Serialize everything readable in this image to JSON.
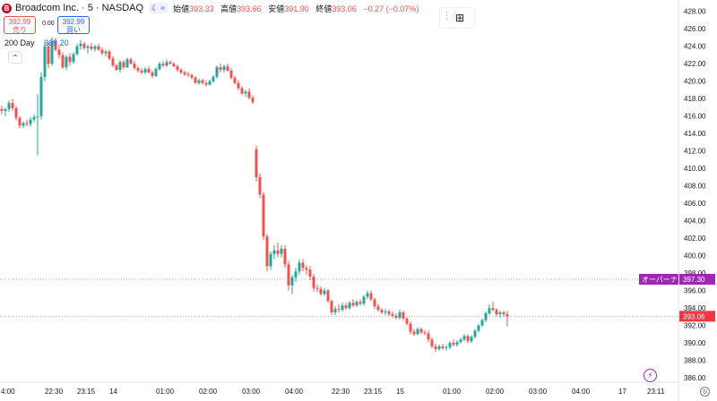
{
  "legend": {
    "logo_letter": "B",
    "symbol": "Broadcom Inc. · 5 · NASDAQ",
    "moon": "☾",
    "wave": "≈",
    "open_label": "始値",
    "open": "393.33",
    "high_label": "高値",
    "high": "393.66",
    "low_label": "安値",
    "low": "391.90",
    "close_label": "終値",
    "close": "393.06",
    "change": "−0.27 (−0.07%)"
  },
  "trade": {
    "sell_price": "392.99",
    "sell_label": "売り",
    "spread": "0.00",
    "buy_price": "392.99",
    "buy_label": "買い"
  },
  "indicator": {
    "name": "200 Day",
    "value": "369.20"
  },
  "collapse_icon": "⌃",
  "tools_icon": "⊞",
  "flash_icon": "⚡",
  "settings_icon": "⚙",
  "colors": {
    "up": "#26a69a",
    "down": "#ef5350",
    "ma": "#2962ff",
    "ah": "#9c27b0",
    "last": "#f23645"
  },
  "chart_data": {
    "type": "candlestick",
    "y_ticks": [
      386,
      388,
      390,
      392,
      394,
      396,
      398,
      400,
      402,
      404,
      406,
      408,
      410,
      412,
      414,
      416,
      418,
      420,
      422,
      424,
      426,
      428
    ],
    "y_tick_labels": [
      "386.00",
      "388.00",
      "390.00",
      "392.00",
      "394.00",
      "396.00",
      "398.00",
      "400.00",
      "402.00",
      "404.00",
      "406.00",
      "408.00",
      "410.00",
      "412.00",
      "414.00",
      "416.00",
      "418.00",
      "420.00",
      "422.00",
      "424.00",
      "426.00",
      "428.00"
    ],
    "ylim": [
      385.5,
      429
    ],
    "x_labels": [
      {
        "text": "4:00",
        "i": 0
      },
      {
        "text": "22:30",
        "i": 14
      },
      {
        "text": "23:15",
        "i": 23
      },
      {
        "text": "14",
        "i": 32
      },
      {
        "text": "01:00",
        "i": 45
      },
      {
        "text": "02:00",
        "i": 57
      },
      {
        "text": "03:00",
        "i": 69
      },
      {
        "text": "04:00",
        "i": 81
      },
      {
        "text": "22:30",
        "i": 94
      },
      {
        "text": "23:15",
        "i": 103
      },
      {
        "text": "15",
        "i": 112
      },
      {
        "text": "01:00",
        "i": 125
      },
      {
        "text": "02:00",
        "i": 137
      },
      {
        "text": "03:00",
        "i": 149
      },
      {
        "text": "04:00",
        "i": 161
      },
      {
        "text": "17",
        "i": 174
      },
      {
        "text": "23:11",
        "i": 182
      }
    ],
    "after_hours": {
      "label": "オーバーナイト",
      "value": 397.3,
      "value_text": "397.30"
    },
    "last_price": {
      "value": 393.06,
      "value_text": "393.06"
    },
    "ma200": 369.2,
    "candles": [
      [
        416.8,
        417.2,
        416.2,
        416.6
      ],
      [
        416.6,
        417.0,
        416.0,
        416.8
      ],
      [
        416.8,
        417.8,
        416.5,
        417.5
      ],
      [
        417.5,
        418.0,
        416.6,
        416.9
      ],
      [
        416.9,
        417.2,
        415.5,
        415.8
      ],
      [
        415.8,
        416.0,
        414.6,
        414.9
      ],
      [
        414.9,
        415.4,
        414.6,
        415.2
      ],
      [
        415.2,
        415.6,
        414.8,
        415.1
      ],
      [
        415.1,
        415.9,
        414.8,
        415.6
      ],
      [
        415.6,
        416.2,
        415.3,
        415.9
      ],
      [
        415.9,
        418.5,
        411.5,
        416.0
      ],
      [
        416.0,
        421.0,
        415.6,
        420.5
      ],
      [
        420.5,
        424.5,
        420.0,
        424.0
      ],
      [
        424.0,
        424.4,
        421.5,
        422.0
      ],
      [
        422.0,
        425.0,
        421.8,
        424.6
      ],
      [
        424.6,
        424.9,
        423.4,
        423.6
      ],
      [
        423.6,
        424.0,
        422.6,
        423.0
      ],
      [
        423.0,
        423.3,
        421.4,
        421.6
      ],
      [
        421.6,
        423.0,
        421.3,
        422.8
      ],
      [
        422.8,
        423.2,
        421.8,
        422.2
      ],
      [
        422.2,
        423.3,
        422.0,
        423.1
      ],
      [
        423.1,
        424.3,
        422.9,
        424.0
      ],
      [
        424.0,
        424.7,
        423.6,
        424.3
      ],
      [
        424.3,
        424.5,
        423.6,
        423.8
      ],
      [
        423.8,
        424.2,
        423.2,
        424.0
      ],
      [
        424.0,
        424.4,
        423.5,
        423.7
      ],
      [
        423.7,
        424.2,
        423.4,
        424.0
      ],
      [
        424.0,
        424.3,
        423.5,
        423.6
      ],
      [
        423.6,
        423.9,
        423.0,
        423.2
      ],
      [
        423.2,
        423.6,
        422.8,
        423.4
      ],
      [
        423.4,
        423.6,
        422.4,
        422.6
      ],
      [
        422.6,
        422.9,
        421.6,
        421.8
      ],
      [
        421.8,
        422.0,
        421.2,
        421.3
      ],
      [
        421.3,
        422.4,
        421.0,
        422.2
      ],
      [
        422.2,
        422.4,
        421.4,
        421.6
      ],
      [
        421.6,
        422.7,
        421.5,
        422.5
      ],
      [
        422.5,
        422.7,
        421.9,
        422.0
      ],
      [
        422.0,
        422.3,
        421.3,
        421.5
      ],
      [
        421.5,
        421.7,
        421.0,
        421.2
      ],
      [
        421.2,
        421.5,
        420.8,
        421.0
      ],
      [
        421.0,
        421.6,
        420.8,
        421.4
      ],
      [
        421.4,
        421.7,
        420.9,
        421.0
      ],
      [
        421.0,
        421.2,
        420.4,
        420.6
      ],
      [
        420.6,
        421.6,
        420.5,
        421.4
      ],
      [
        421.4,
        422.2,
        421.2,
        422.0
      ],
      [
        422.0,
        422.3,
        421.6,
        421.8
      ],
      [
        421.8,
        422.5,
        421.6,
        422.2
      ],
      [
        422.2,
        422.4,
        421.9,
        422.0
      ],
      [
        422.0,
        422.2,
        421.6,
        421.7
      ],
      [
        421.7,
        421.9,
        421.1,
        421.3
      ],
      [
        421.3,
        421.5,
        420.8,
        421.0
      ],
      [
        421.0,
        421.2,
        420.6,
        420.8
      ],
      [
        420.8,
        421.1,
        420.5,
        420.7
      ],
      [
        420.7,
        420.9,
        420.2,
        420.4
      ],
      [
        420.4,
        420.6,
        419.7,
        419.8
      ],
      [
        419.8,
        420.3,
        419.6,
        420.1
      ],
      [
        420.1,
        420.3,
        419.6,
        419.8
      ],
      [
        419.8,
        420.1,
        419.4,
        419.6
      ],
      [
        419.6,
        420.2,
        419.5,
        420.0
      ],
      [
        420.0,
        420.7,
        419.8,
        420.5
      ],
      [
        420.5,
        421.8,
        420.3,
        421.6
      ],
      [
        421.6,
        422.0,
        421.0,
        421.3
      ],
      [
        421.3,
        421.9,
        421.0,
        421.7
      ],
      [
        421.7,
        422.0,
        421.1,
        421.2
      ],
      [
        421.2,
        421.5,
        420.2,
        420.4
      ],
      [
        420.4,
        420.6,
        419.6,
        419.8
      ],
      [
        419.8,
        420.1,
        419.0,
        419.2
      ],
      [
        419.2,
        419.4,
        418.4,
        418.6
      ],
      [
        418.6,
        419.0,
        418.2,
        418.8
      ],
      [
        418.8,
        419.2,
        417.9,
        418.1
      ],
      [
        418.1,
        418.4,
        417.4,
        417.6
      ],
      [
        412.2,
        412.6,
        408.5,
        409.0
      ],
      [
        409.0,
        409.4,
        406.6,
        407.0
      ],
      [
        407.0,
        407.3,
        401.8,
        402.2
      ],
      [
        402.2,
        402.5,
        398.2,
        398.8
      ],
      [
        398.8,
        400.5,
        398.4,
        400.2
      ],
      [
        400.2,
        401.2,
        399.6,
        400.6
      ],
      [
        400.6,
        401.5,
        399.8,
        400.2
      ],
      [
        400.2,
        401.2,
        399.8,
        400.8
      ],
      [
        400.8,
        401.2,
        398.6,
        399.0
      ],
      [
        399.0,
        399.4,
        396.0,
        396.6
      ],
      [
        396.6,
        397.8,
        395.6,
        397.5
      ],
      [
        397.5,
        398.6,
        397.0,
        398.2
      ],
      [
        398.2,
        399.6,
        397.8,
        399.2
      ],
      [
        399.2,
        399.6,
        398.2,
        398.6
      ],
      [
        398.6,
        398.9,
        397.8,
        398.4
      ],
      [
        398.4,
        398.8,
        397.2,
        397.6
      ],
      [
        397.6,
        397.9,
        395.9,
        396.3
      ],
      [
        396.3,
        396.7,
        395.8,
        396.2
      ],
      [
        396.2,
        396.5,
        395.4,
        395.6
      ],
      [
        395.6,
        396.3,
        395.4,
        396.0
      ],
      [
        396.0,
        396.2,
        394.6,
        394.8
      ],
      [
        394.8,
        395.0,
        393.2,
        393.5
      ],
      [
        393.5,
        394.2,
        393.2,
        393.9
      ],
      [
        393.9,
        394.4,
        393.5,
        393.8
      ],
      [
        393.8,
        394.6,
        393.6,
        394.3
      ],
      [
        394.3,
        394.6,
        393.8,
        394.0
      ],
      [
        394.0,
        394.8,
        393.8,
        394.6
      ],
      [
        394.6,
        395.0,
        394.1,
        394.3
      ],
      [
        394.3,
        394.9,
        394.1,
        394.7
      ],
      [
        394.7,
        395.0,
        394.3,
        394.5
      ],
      [
        394.5,
        395.5,
        394.3,
        395.3
      ],
      [
        395.3,
        396.0,
        395.0,
        395.7
      ],
      [
        395.7,
        396.0,
        394.8,
        395.0
      ],
      [
        395.0,
        395.2,
        393.9,
        394.2
      ],
      [
        394.2,
        394.5,
        393.6,
        393.8
      ],
      [
        393.8,
        394.0,
        393.3,
        393.5
      ],
      [
        393.5,
        393.9,
        393.2,
        393.6
      ],
      [
        393.6,
        393.8,
        393.1,
        393.3
      ],
      [
        393.3,
        393.6,
        392.9,
        393.1
      ],
      [
        393.1,
        393.4,
        392.7,
        392.9
      ],
      [
        392.9,
        393.8,
        392.7,
        393.5
      ],
      [
        393.5,
        393.7,
        392.6,
        392.8
      ],
      [
        392.8,
        393.0,
        392.0,
        392.2
      ],
      [
        392.2,
        392.5,
        391.0,
        391.3
      ],
      [
        391.3,
        391.6,
        390.8,
        391.0
      ],
      [
        391.0,
        391.8,
        390.9,
        391.6
      ],
      [
        391.6,
        391.8,
        391.0,
        391.2
      ],
      [
        391.2,
        391.5,
        390.9,
        391.1
      ],
      [
        391.1,
        391.4,
        390.1,
        390.4
      ],
      [
        390.4,
        390.6,
        389.4,
        389.6
      ],
      [
        389.6,
        389.9,
        389.0,
        389.3
      ],
      [
        389.3,
        389.8,
        389.1,
        389.6
      ],
      [
        389.6,
        389.9,
        389.2,
        389.4
      ],
      [
        389.4,
        389.8,
        389.1,
        389.5
      ],
      [
        389.5,
        390.2,
        389.3,
        390.0
      ],
      [
        390.0,
        390.4,
        389.6,
        389.8
      ],
      [
        389.8,
        390.3,
        389.6,
        390.1
      ],
      [
        390.1,
        390.6,
        389.9,
        390.4
      ],
      [
        390.4,
        391.0,
        390.2,
        390.8
      ],
      [
        390.8,
        391.0,
        390.0,
        390.2
      ],
      [
        390.2,
        390.9,
        390.0,
        390.7
      ],
      [
        390.7,
        391.6,
        390.5,
        391.4
      ],
      [
        391.4,
        392.2,
        391.2,
        392.0
      ],
      [
        392.0,
        392.8,
        391.8,
        392.6
      ],
      [
        392.6,
        393.6,
        392.4,
        393.4
      ],
      [
        393.4,
        394.4,
        393.2,
        394.0
      ],
      [
        394.0,
        394.7,
        393.6,
        393.8
      ],
      [
        393.8,
        394.0,
        393.0,
        393.3
      ],
      [
        393.3,
        393.7,
        392.9,
        393.5
      ],
      [
        393.5,
        393.7,
        393.0,
        393.3
      ],
      [
        393.3,
        393.66,
        391.9,
        393.06
      ]
    ],
    "gap_after_index": 70
  }
}
